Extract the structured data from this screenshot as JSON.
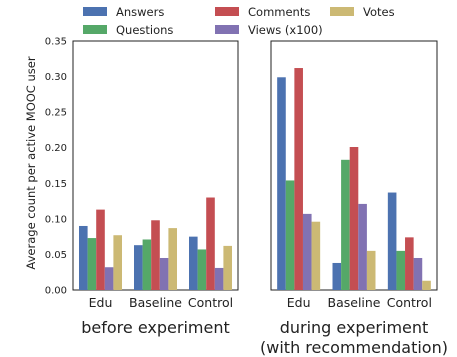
{
  "chart_data": {
    "type": "bar",
    "ylabel": "Average count per active MOOC user",
    "ylim": [
      0,
      0.35
    ],
    "yticks": [
      "0.00",
      "0.05",
      "0.10",
      "0.15",
      "0.20",
      "0.25",
      "0.30",
      "0.35"
    ],
    "categories": [
      "Edu",
      "Baseline",
      "Control"
    ],
    "legend": {
      "placement": "top",
      "columns": 3,
      "entries": [
        {
          "name": "Answers",
          "color": "#4c72b0"
        },
        {
          "name": "Questions",
          "color": "#55a868"
        },
        {
          "name": "Comments",
          "color": "#c44e52"
        },
        {
          "name": "Views (x100)",
          "color": "#8172b2"
        },
        {
          "name": "Votes",
          "color": "#ccb974"
        }
      ]
    },
    "panels": [
      {
        "caption": [
          "before experiment"
        ],
        "series": [
          {
            "name": "Answers",
            "color": "#4c72b0",
            "values": [
              0.09,
              0.063,
              0.075
            ]
          },
          {
            "name": "Questions",
            "color": "#55a868",
            "values": [
              0.073,
              0.071,
              0.057
            ]
          },
          {
            "name": "Comments",
            "color": "#c44e52",
            "values": [
              0.113,
              0.098,
              0.13
            ]
          },
          {
            "name": "Views (x100)",
            "color": "#8172b2",
            "values": [
              0.032,
              0.045,
              0.031
            ]
          },
          {
            "name": "Votes",
            "color": "#ccb974",
            "values": [
              0.077,
              0.087,
              0.062
            ]
          }
        ]
      },
      {
        "caption": [
          "during experiment",
          "(with recommendation)"
        ],
        "series": [
          {
            "name": "Answers",
            "color": "#4c72b0",
            "values": [
              0.299,
              0.038,
              0.137
            ]
          },
          {
            "name": "Questions",
            "color": "#55a868",
            "values": [
              0.154,
              0.183,
              0.055
            ]
          },
          {
            "name": "Comments",
            "color": "#c44e52",
            "values": [
              0.312,
              0.201,
              0.074
            ]
          },
          {
            "name": "Views (x100)",
            "color": "#8172b2",
            "values": [
              0.107,
              0.121,
              0.045
            ]
          },
          {
            "name": "Votes",
            "color": "#ccb974",
            "values": [
              0.096,
              0.055,
              0.013
            ]
          }
        ]
      }
    ]
  }
}
